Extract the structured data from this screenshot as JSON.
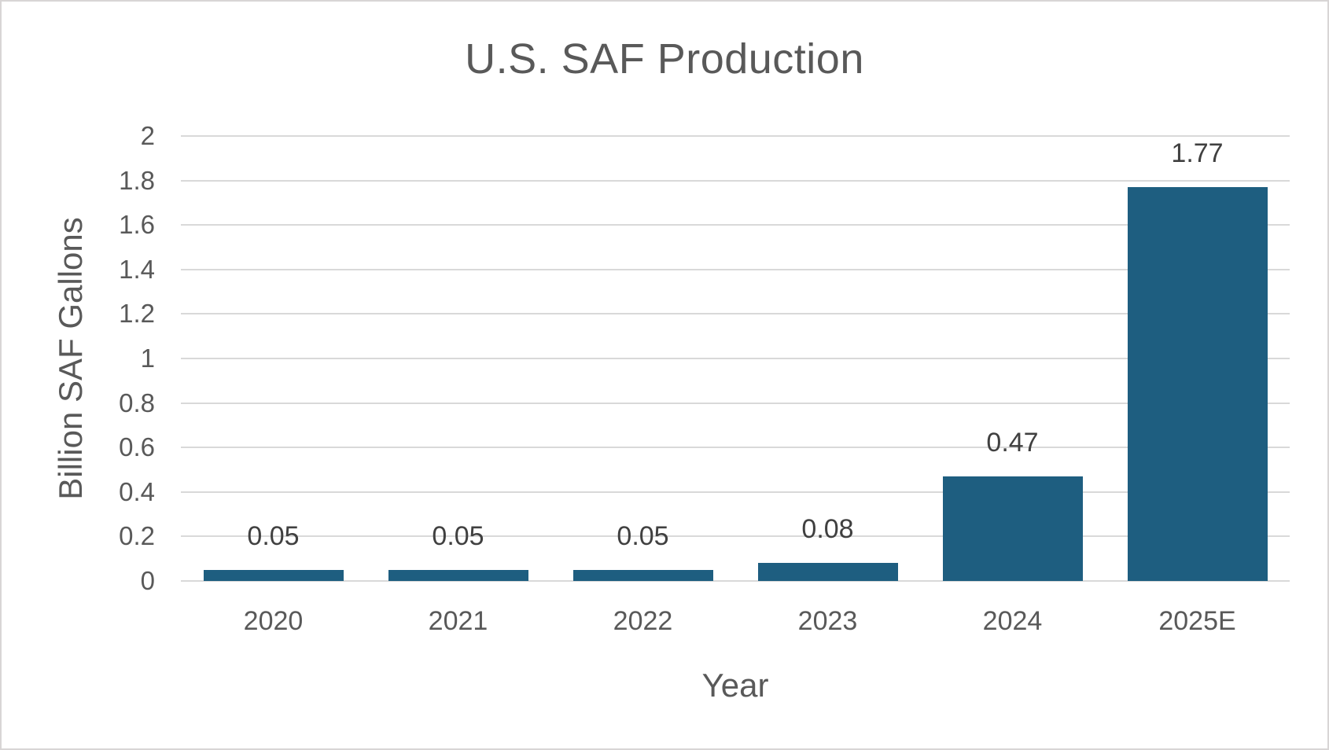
{
  "chart_data": {
    "type": "bar",
    "title": "U.S. SAF Production",
    "xlabel": "Year",
    "ylabel": "Billion SAF Gallons",
    "categories": [
      "2020",
      "2021",
      "2022",
      "2023",
      "2024",
      "2025E"
    ],
    "values": [
      0.05,
      0.05,
      0.05,
      0.08,
      0.47,
      1.77
    ],
    "data_labels": [
      "0.05",
      "0.05",
      "0.05",
      "0.08",
      "0.47",
      "1.77"
    ],
    "ylim": [
      0,
      2
    ],
    "ytick_step": 0.2,
    "yticks": [
      "0",
      "0.2",
      "0.4",
      "0.6",
      "0.8",
      "1",
      "1.2",
      "1.4",
      "1.6",
      "1.8",
      "2"
    ],
    "grid": "horizontal",
    "legend": "none",
    "colors": {
      "bar": "#1E5E80",
      "gridline": "#D9D9D9",
      "baseline": "#D9D9D9",
      "title_text": "#595959",
      "axis_title_text": "#595959",
      "tick_text": "#595959",
      "data_label_text": "#404040",
      "background": "#FFFFFF",
      "frame_border": "#D8D5D5"
    }
  }
}
